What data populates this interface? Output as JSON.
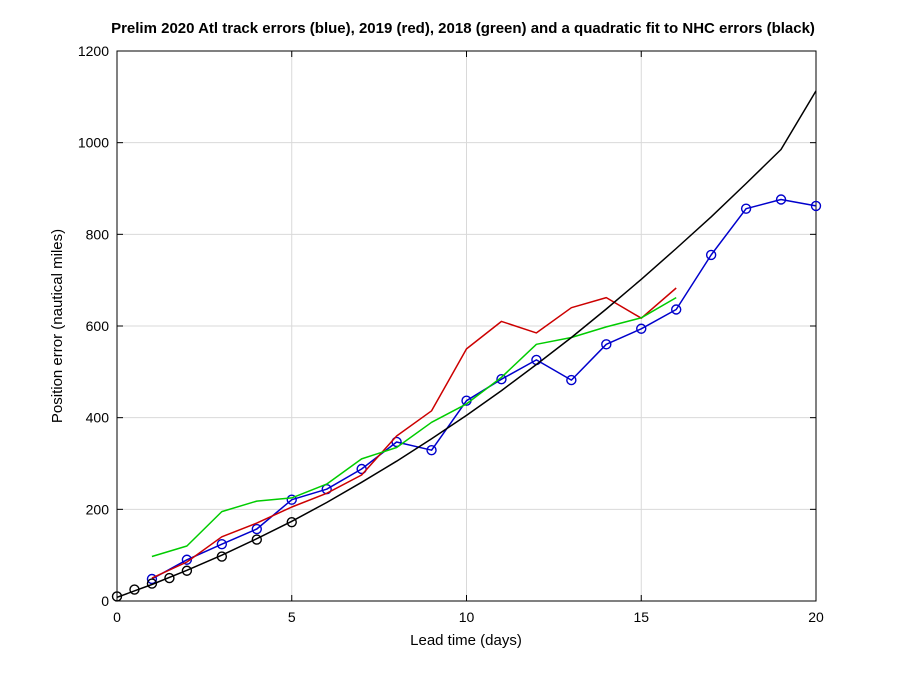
{
  "chart_data": {
    "type": "line",
    "title": "Prelim 2020 Atl track errors (blue), 2019 (red), 2018 (green) and a quadratic fit to NHC errors (black)",
    "xlabel": "Lead time (days)",
    "ylabel": "Position error (nautical miles)",
    "xlim": [
      0,
      20
    ],
    "ylim": [
      0,
      1200
    ],
    "xticks": [
      "0",
      "5",
      "10",
      "15",
      "20"
    ],
    "yticks": [
      "0",
      "200",
      "400",
      "600",
      "800",
      "1000",
      "1200"
    ],
    "grid": true,
    "series": [
      {
        "color": "#0000cc",
        "markers": true,
        "x": [
          1,
          2,
          3,
          4,
          5,
          6,
          7,
          8,
          9,
          10,
          11,
          12,
          13,
          14,
          15,
          16,
          17,
          18,
          19,
          20
        ],
        "values": [
          48,
          90,
          124,
          157,
          221,
          244,
          288,
          347,
          329,
          437,
          484,
          526,
          482,
          560,
          594,
          636,
          755,
          856,
          876,
          862
        ]
      },
      {
        "color": "#cc0000",
        "markers": false,
        "x": [
          1,
          2,
          3,
          4,
          5,
          6,
          7,
          8,
          9,
          10,
          11,
          12,
          13,
          14,
          15,
          16
        ],
        "values": [
          50,
          85,
          140,
          170,
          205,
          235,
          275,
          360,
          415,
          550,
          610,
          585,
          640,
          662,
          617,
          683
        ]
      },
      {
        "color": "#00cc00",
        "markers": false,
        "x": [
          1,
          2,
          3,
          4,
          5,
          6,
          7,
          8,
          9,
          10,
          11,
          12,
          13,
          14,
          15,
          16
        ],
        "values": [
          97,
          120,
          195,
          218,
          225,
          255,
          310,
          335,
          390,
          430,
          488,
          560,
          575,
          598,
          618,
          662
        ]
      },
      {
        "color": "#000000",
        "markers": false,
        "x": [
          0,
          1,
          2,
          3,
          4,
          5,
          6,
          7,
          8,
          9,
          10,
          11,
          12,
          13,
          14,
          15,
          16,
          17,
          18,
          19,
          20
        ],
        "values": [
          8,
          36,
          67,
          100,
          136,
          174,
          215,
          259,
          305,
          354,
          405,
          459,
          516,
          575,
          637,
          702,
          769,
          838,
          911,
          985,
          1113
        ]
      },
      {
        "color": "#000000",
        "markers": true,
        "line": false,
        "x": [
          0,
          0.5,
          1,
          1.5,
          2,
          3,
          4,
          5
        ],
        "values": [
          10,
          25,
          38,
          50,
          66,
          97,
          134,
          172
        ]
      }
    ]
  }
}
